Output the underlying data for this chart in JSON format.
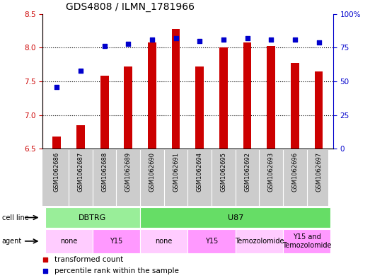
{
  "title": "GDS4808 / ILMN_1781966",
  "samples": [
    "GSM1062686",
    "GSM1062687",
    "GSM1062688",
    "GSM1062689",
    "GSM1062690",
    "GSM1062691",
    "GSM1062694",
    "GSM1062695",
    "GSM1062692",
    "GSM1062693",
    "GSM1062696",
    "GSM1062697"
  ],
  "transformed_count": [
    6.68,
    6.85,
    7.58,
    7.72,
    8.08,
    8.28,
    7.72,
    8.0,
    8.08,
    8.02,
    7.77,
    7.65
  ],
  "percentile_rank": [
    46,
    58,
    76,
    78,
    81,
    82,
    80,
    81,
    82,
    81,
    81,
    79
  ],
  "ylim_left": [
    6.5,
    8.5
  ],
  "ylim_right": [
    0,
    100
  ],
  "yticks_left": [
    6.5,
    7.0,
    7.5,
    8.0,
    8.5
  ],
  "yticks_right": [
    0,
    25,
    50,
    75,
    100
  ],
  "bar_color": "#cc0000",
  "dot_color": "#0000cc",
  "bar_bottom": 6.5,
  "cell_line_groups": [
    {
      "label": "DBTRG",
      "start": 0,
      "end": 4,
      "color": "#99ee99"
    },
    {
      "label": "U87",
      "start": 4,
      "end": 12,
      "color": "#66dd66"
    }
  ],
  "agent_groups": [
    {
      "label": "none",
      "start": 0,
      "end": 2,
      "color": "#ffccff"
    },
    {
      "label": "Y15",
      "start": 2,
      "end": 4,
      "color": "#ff99ff"
    },
    {
      "label": "none",
      "start": 4,
      "end": 6,
      "color": "#ffccff"
    },
    {
      "label": "Y15",
      "start": 6,
      "end": 8,
      "color": "#ff99ff"
    },
    {
      "label": "Temozolomide",
      "start": 8,
      "end": 10,
      "color": "#ffccff"
    },
    {
      "label": "Y15 and\nTemozolomide",
      "start": 10,
      "end": 12,
      "color": "#ff99ff"
    }
  ],
  "title_fontsize": 10,
  "tick_fontsize": 7.5,
  "bar_width": 0.35
}
